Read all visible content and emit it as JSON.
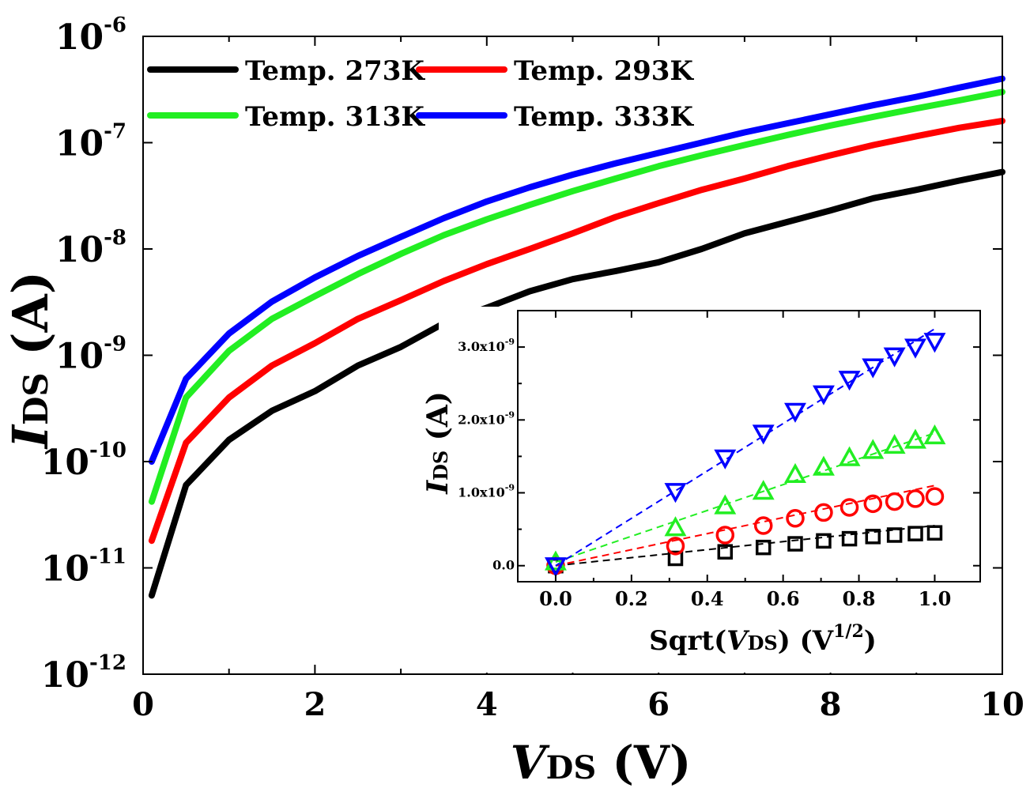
{
  "colors": {
    "t273": "#000000",
    "t293": "#ff0000",
    "t313": "#22ee22",
    "t333": "#0000ff",
    "axis": "#000000"
  },
  "chart_data": [
    {
      "type": "line",
      "xlabel": "V",
      "xlabel_sub": "DS",
      "xlabel_unit": "(V)",
      "ylabel": "I",
      "ylabel_sub": "DS",
      "ylabel_unit": "(A)",
      "xlim": [
        0,
        10
      ],
      "ylim": [
        1e-12,
        1e-06
      ],
      "yscale": "log",
      "xticks": [
        "0",
        "2",
        "4",
        "6",
        "8",
        "10"
      ],
      "yticks": [
        {
          "base": "10",
          "exp": "-12"
        },
        {
          "base": "10",
          "exp": "-11"
        },
        {
          "base": "10",
          "exp": "-10"
        },
        {
          "base": "10",
          "exp": "-9"
        },
        {
          "base": "10",
          "exp": "-8"
        },
        {
          "base": "10",
          "exp": "-7"
        },
        {
          "base": "10",
          "exp": "-6"
        }
      ],
      "legend": {
        "placement": "top-left",
        "columns": 2
      },
      "grid": false,
      "series": [
        {
          "name": "Temp. 273K",
          "color": "#000000",
          "x": [
            0.1,
            0.5,
            1,
            1.5,
            2,
            2.5,
            3,
            3.5,
            4,
            4.5,
            5,
            5.5,
            6,
            6.5,
            7,
            7.5,
            8,
            8.5,
            9,
            9.5,
            10
          ],
          "y": [
            5.5e-12,
            6e-11,
            1.6e-10,
            3e-10,
            4.6e-10,
            8e-10,
            1.2e-09,
            2e-09,
            2.8e-09,
            4e-09,
            5.2e-09,
            6.2e-09,
            7.5e-09,
            1e-08,
            1.4e-08,
            1.8e-08,
            2.3e-08,
            3e-08,
            3.6e-08,
            4.4e-08,
            5.3e-08
          ]
        },
        {
          "name": "Temp. 293K",
          "color": "#ff0000",
          "x": [
            0.1,
            0.5,
            1,
            1.5,
            2,
            2.5,
            3,
            3.5,
            4,
            4.5,
            5,
            5.5,
            6,
            6.5,
            7,
            7.5,
            8,
            8.5,
            9,
            9.5,
            10
          ],
          "y": [
            1.8e-11,
            1.5e-10,
            4e-10,
            8e-10,
            1.3e-09,
            2.2e-09,
            3.3e-09,
            5e-09,
            7.2e-09,
            1e-08,
            1.4e-08,
            2e-08,
            2.7e-08,
            3.6e-08,
            4.6e-08,
            6e-08,
            7.6e-08,
            9.5e-08,
            1.15e-07,
            1.38e-07,
            1.6e-07
          ]
        },
        {
          "name": "Temp. 313K",
          "color": "#22ee22",
          "x": [
            0.1,
            0.5,
            1,
            1.5,
            2,
            2.5,
            3,
            3.5,
            4,
            4.5,
            5,
            5.5,
            6,
            6.5,
            7,
            7.5,
            8,
            8.5,
            9,
            9.5,
            10
          ],
          "y": [
            4.2e-11,
            4e-10,
            1.1e-09,
            2.2e-09,
            3.6e-09,
            5.8e-09,
            9e-09,
            1.35e-08,
            1.9e-08,
            2.6e-08,
            3.5e-08,
            4.6e-08,
            6e-08,
            7.6e-08,
            9.5e-08,
            1.18e-07,
            1.45e-07,
            1.75e-07,
            2.1e-07,
            2.5e-07,
            3e-07
          ]
        },
        {
          "name": "Temp. 333K",
          "color": "#0000ff",
          "x": [
            0.1,
            0.5,
            1,
            1.5,
            2,
            2.5,
            3,
            3.5,
            4,
            4.5,
            5,
            5.5,
            6,
            6.5,
            7,
            7.5,
            8,
            8.5,
            9,
            9.5,
            10
          ],
          "y": [
            1e-10,
            6e-10,
            1.6e-09,
            3.2e-09,
            5.4e-09,
            8.6e-09,
            1.3e-08,
            1.95e-08,
            2.8e-08,
            3.8e-08,
            5e-08,
            6.4e-08,
            8e-08,
            1e-07,
            1.25e-07,
            1.52e-07,
            1.85e-07,
            2.25e-07,
            2.7e-07,
            3.3e-07,
            4e-07
          ]
        }
      ]
    },
    {
      "type": "scatter",
      "inset": true,
      "xlabel_prefix": "Sqrt(",
      "xlabel_var": "V",
      "xlabel_sub": "DS",
      "xlabel_mid": ") (V",
      "xlabel_sup": "1/2",
      "xlabel_suffix": ")",
      "ylabel": "I",
      "ylabel_sub": "DS",
      "ylabel_unit": "(A)",
      "xlim": [
        -0.1,
        1.12
      ],
      "ylim": [
        -2.2e-10,
        3.5e-09
      ],
      "xticks": [
        "0.0",
        "0.2",
        "0.4",
        "0.6",
        "0.8",
        "1.0"
      ],
      "yticks": [
        {
          "label": "0.0",
          "exp": ""
        },
        {
          "label": "1.0x10",
          "exp": "-9"
        },
        {
          "label": "2.0x10",
          "exp": "-9"
        },
        {
          "label": "3.0x10",
          "exp": "-9"
        }
      ],
      "x": [
        0,
        0.316,
        0.447,
        0.548,
        0.632,
        0.707,
        0.775,
        0.837,
        0.894,
        0.949,
        1.0
      ],
      "series": [
        {
          "color": "#000000",
          "marker": "square",
          "values": [
            0.0,
            1e-10,
            1.9e-10,
            2.5e-10,
            3e-10,
            3.4e-10,
            3.7e-10,
            4e-10,
            4.2e-10,
            4.4e-10,
            4.5e-10
          ],
          "fit_end": 5.5e-10
        },
        {
          "color": "#ff0000",
          "marker": "circle",
          "values": [
            0.0,
            2.7e-10,
            4.2e-10,
            5.5e-10,
            6.5e-10,
            7.3e-10,
            8e-10,
            8.5e-10,
            8.8e-10,
            9.2e-10,
            9.5e-10
          ],
          "fit_end": 1.1e-09
        },
        {
          "color": "#22ee22",
          "marker": "triangle-up",
          "values": [
            5e-11,
            5.2e-10,
            8.2e-10,
            1.02e-09,
            1.25e-09,
            1.35e-09,
            1.48e-09,
            1.58e-09,
            1.65e-09,
            1.72e-09,
            1.78e-09
          ],
          "fit_end": 1.82e-09
        },
        {
          "color": "#0000ff",
          "marker": "triangle-down",
          "values": [
            0.0,
            1.02e-09,
            1.48e-09,
            1.82e-09,
            2.12e-09,
            2.36e-09,
            2.56e-09,
            2.73e-09,
            2.88e-09,
            3e-09,
            3.08e-09
          ],
          "fit_end": 3.25e-09
        }
      ]
    }
  ]
}
